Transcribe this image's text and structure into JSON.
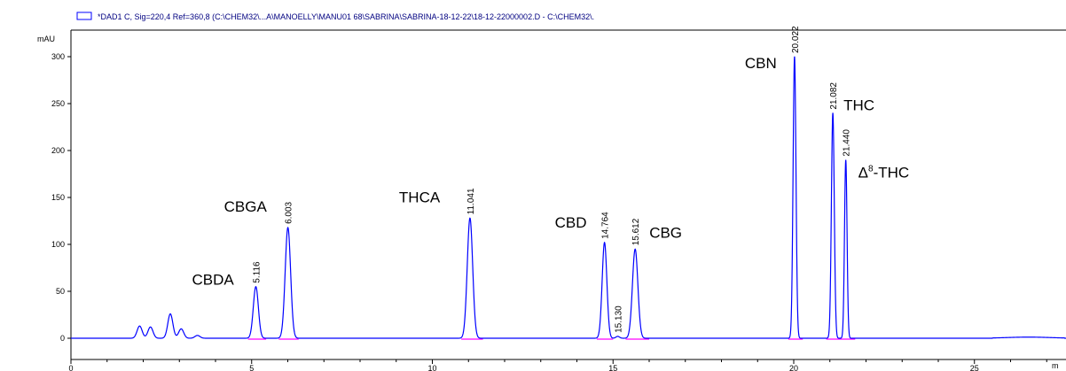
{
  "header": {
    "legend_text": "*DAD1 C, Sig=220,4 Ref=360,8 (C:\\CHEM32\\...A\\MANOELLY\\MANU01 68\\SABRINA\\SABRINA-18-12-22\\18-12-22000002.D - C:\\CHEM32\\."
  },
  "colors": {
    "trace": "#0000ff",
    "baseline": "#ff00ff",
    "legend_box": "#0000ff",
    "axis": "#000000"
  },
  "chart_data": {
    "type": "line",
    "y_unit": "mAU",
    "x_unit": "m",
    "xlim": [
      0,
      27.8
    ],
    "ylim": [
      -10,
      325
    ],
    "x_ticks": [
      0,
      5,
      10,
      15,
      20,
      25
    ],
    "y_ticks": [
      0,
      50,
      100,
      150,
      200,
      250,
      300
    ],
    "grid": false,
    "peaks": [
      {
        "rt": 5.116,
        "rt_label": "5.116",
        "height": 55,
        "width": 0.07,
        "compound": "CBDA"
      },
      {
        "rt": 6.003,
        "rt_label": "6.003",
        "height": 118,
        "width": 0.075,
        "compound": "CBGA"
      },
      {
        "rt": 11.041,
        "rt_label": "11.041",
        "height": 128,
        "width": 0.075,
        "compound": "THCA"
      },
      {
        "rt": 14.764,
        "rt_label": "14.764",
        "height": 102,
        "width": 0.065,
        "compound": "CBD"
      },
      {
        "rt": 15.13,
        "rt_label": "15.130",
        "height": 2,
        "width": 0.05,
        "compound": ""
      },
      {
        "rt": 15.612,
        "rt_label": "15.612",
        "height": 95,
        "width": 0.075,
        "compound": "CBG"
      },
      {
        "rt": 20.022,
        "rt_label": "20.022",
        "height": 300,
        "width": 0.04,
        "compound": "CBN"
      },
      {
        "rt": 21.082,
        "rt_label": "21.082",
        "height": 240,
        "width": 0.04,
        "compound": "THC"
      },
      {
        "rt": 21.44,
        "rt_label": "21.440",
        "height": 190,
        "width": 0.035,
        "compound": "Δ8-THC"
      }
    ],
    "early_bumps": [
      {
        "rt": 1.9,
        "height": 13
      },
      {
        "rt": 2.2,
        "height": 12
      },
      {
        "rt": 2.75,
        "height": 26
      },
      {
        "rt": 3.05,
        "height": 10
      },
      {
        "rt": 3.5,
        "height": 3
      }
    ],
    "baseline_segments": [
      [
        4.9,
        5.4
      ],
      [
        5.75,
        6.3
      ],
      [
        10.8,
        11.4
      ],
      [
        14.55,
        15.0
      ],
      [
        15.35,
        16.0
      ],
      [
        19.85,
        20.25
      ],
      [
        20.9,
        21.3
      ],
      [
        21.3,
        21.7
      ]
    ]
  }
}
